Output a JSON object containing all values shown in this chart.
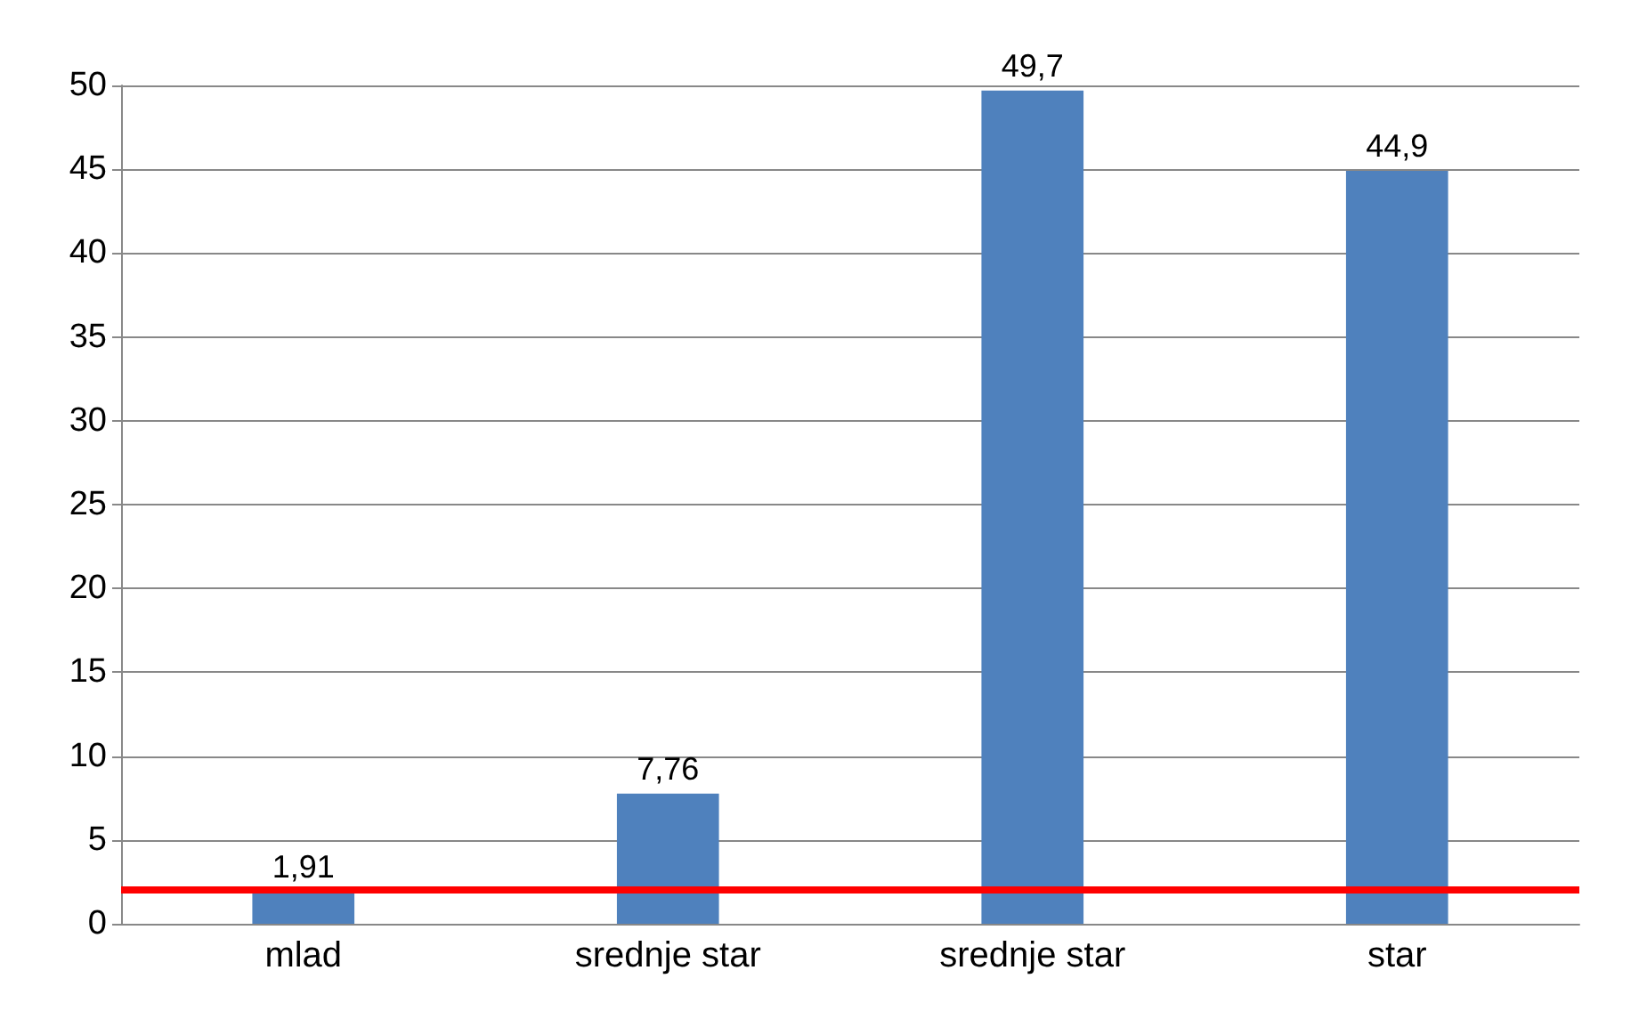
{
  "chart_data": {
    "type": "bar",
    "categories": [
      "mlad",
      "srednje star",
      "srednje star",
      "star"
    ],
    "values": [
      1.91,
      7.76,
      49.7,
      44.9
    ],
    "value_labels": [
      "1,91",
      "7,76",
      "49,7",
      "44,9"
    ],
    "color": "#4f81bd",
    "ylim": [
      0,
      50
    ],
    "yticks": [
      0,
      5,
      10,
      15,
      20,
      25,
      30,
      35,
      40,
      45,
      50
    ],
    "grid": "y",
    "ref_lines": [
      {
        "axis": "y",
        "value": 2,
        "color": "#ff0000"
      }
    ]
  }
}
